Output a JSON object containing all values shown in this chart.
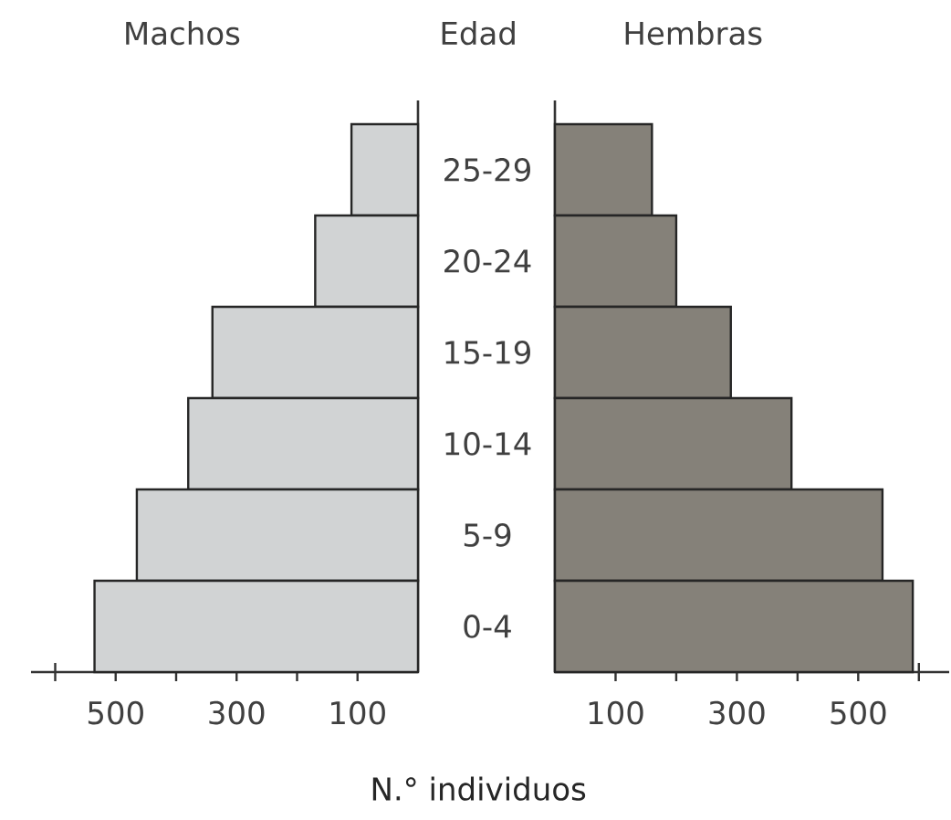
{
  "chart_data": [
    {
      "type": "bar",
      "orientation": "horizontal",
      "title": "Machos",
      "ylabel": "Edad",
      "xlabel": "N.° individuos",
      "categories": [
        "25-29",
        "20-24",
        "15-19",
        "10-14",
        "5-9",
        "0-4"
      ],
      "series": [
        {
          "color": "#d1d3d4",
          "values": [
            110,
            170,
            340,
            380,
            465,
            535
          ]
        }
      ],
      "xlim": [
        640,
        0
      ],
      "xticks": [
        100,
        {
          "value": 200,
          "label": null
        },
        300,
        {
          "value": 400,
          "label": null
        },
        500,
        {
          "value": 600,
          "label": null
        }
      ]
    },
    {
      "type": "bar",
      "orientation": "horizontal",
      "title": "Hembras",
      "categories": [
        null,
        null,
        null,
        null,
        null,
        null
      ],
      "series": [
        {
          "color": "#858179",
          "values": [
            160,
            200,
            290,
            390,
            540,
            590
          ]
        }
      ],
      "xlim": [
        0,
        650
      ],
      "xticks": [
        100,
        {
          "value": 200,
          "label": null
        },
        300,
        {
          "value": 400,
          "label": null
        },
        500,
        {
          "value": 600,
          "label": null
        }
      ],
      "tick_labels": "x"
    }
  ]
}
